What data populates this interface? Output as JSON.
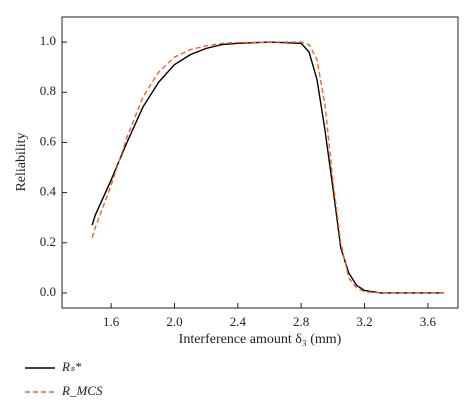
{
  "chart_data": {
    "type": "line",
    "x_label": "Interference amount δ₃ (mm)",
    "y_label": "Reliability",
    "x": [
      1.48,
      1.5,
      1.6,
      1.7,
      1.8,
      1.9,
      2.0,
      2.1,
      2.2,
      2.3,
      2.4,
      2.6,
      2.8,
      2.85,
      2.9,
      2.95,
      3.0,
      3.05,
      3.1,
      3.15,
      3.2,
      3.3,
      3.5,
      3.7
    ],
    "series": [
      {
        "name": "Rₛ*",
        "color": "#000000",
        "dash": false,
        "values": [
          0.27,
          0.31,
          0.45,
          0.6,
          0.74,
          0.84,
          0.91,
          0.95,
          0.975,
          0.99,
          0.995,
          1.0,
          0.995,
          0.96,
          0.85,
          0.65,
          0.42,
          0.18,
          0.08,
          0.03,
          0.01,
          0.0,
          0.0,
          0.0
        ]
      },
      {
        "name": "R_MCS",
        "color": "#e8662a",
        "dash": true,
        "values": [
          0.22,
          0.26,
          0.43,
          0.62,
          0.78,
          0.88,
          0.94,
          0.97,
          0.985,
          0.995,
          0.998,
          1.0,
          1.0,
          0.99,
          0.93,
          0.75,
          0.45,
          0.2,
          0.06,
          0.02,
          0.005,
          0.0,
          0.0,
          0.0
        ]
      }
    ],
    "xlim": [
      1.29,
      3.79
    ],
    "ylim": [
      -0.06,
      1.1
    ],
    "xticks": [
      1.6,
      {
        "value": 2,
        "label": "2.0"
      },
      2.4,
      2.8,
      3.2,
      3.6
    ],
    "yticks": [
      {
        "value": 0,
        "label": "0.0"
      },
      0.2,
      0.4,
      0.6,
      0.8,
      {
        "value": 1,
        "label": "1.0"
      }
    ]
  }
}
